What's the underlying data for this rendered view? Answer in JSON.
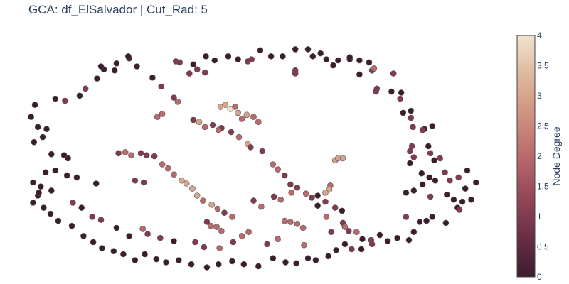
{
  "title": "GCA: df_ElSalvador | Cut_Rad: 5",
  "chart_data": {
    "type": "scatter",
    "title": "GCA: df_ElSalvador | Cut_Rad: 5",
    "xlabel": "",
    "ylabel": "",
    "x_axis_visible": false,
    "y_axis_visible": false,
    "grid": false,
    "colorbar": {
      "title": "Node Degree",
      "range": [
        0,
        4
      ],
      "ticks": [
        0,
        0.5,
        1,
        1.5,
        2,
        2.5,
        3,
        3.5,
        4
      ],
      "tick_labels": [
        "0",
        "0.5",
        "1",
        "1.5",
        "2",
        "2.5",
        "3",
        "3.5",
        "4"
      ],
      "colorscale": [
        "#3b1d2e",
        "#6a2e45",
        "#96485a",
        "#b96a6c",
        "#cf917f",
        "#ddb89c",
        "#efe3ce"
      ]
    },
    "marker_line_color": "#555555",
    "points": [
      [
        -10.0,
        8.9,
        0
      ],
      [
        -7.6,
        10.5,
        1
      ],
      [
        -7.2,
        10.4,
        1
      ],
      [
        -5.8,
        10.2,
        0
      ],
      [
        -4.5,
        11.0,
        0
      ],
      [
        -3.6,
        10.6,
        0
      ],
      [
        -2.2,
        11.0,
        0
      ],
      [
        -1.2,
        10.7,
        0
      ],
      [
        -0.2,
        10.5,
        1
      ],
      [
        0.2,
        10.7,
        1
      ],
      [
        1.1,
        11.6,
        0
      ],
      [
        2.2,
        11.0,
        0
      ],
      [
        3.4,
        11.0,
        0
      ],
      [
        4.7,
        11.7,
        0
      ],
      [
        4.7,
        9.6,
        1
      ],
      [
        4.7,
        9.3,
        1
      ],
      [
        6.0,
        11.7,
        0
      ],
      [
        6.5,
        11.0,
        0
      ],
      [
        7.3,
        11.3,
        0
      ],
      [
        7.9,
        10.7,
        0
      ],
      [
        8.6,
        10.1,
        0
      ],
      [
        9.1,
        10.6,
        0
      ],
      [
        10.3,
        10.7,
        0
      ],
      [
        10.3,
        10.9,
        0
      ],
      [
        11.3,
        10.6,
        0
      ],
      [
        12.3,
        10.4,
        0
      ],
      [
        11.3,
        9.2,
        0
      ],
      [
        12.6,
        9.6,
        1
      ],
      [
        12.8,
        9.8,
        2
      ],
      [
        13.1,
        7.8,
        1
      ],
      [
        13.0,
        7.5,
        1
      ],
      [
        14.8,
        9.3,
        1
      ],
      [
        14.6,
        7.5,
        0
      ],
      [
        15.6,
        7.4,
        0
      ],
      [
        15.5,
        6.8,
        1
      ],
      [
        15.8,
        5.4,
        0
      ],
      [
        16.6,
        5.6,
        0
      ],
      [
        16.6,
        4.9,
        1
      ],
      [
        16.8,
        4.0,
        1
      ],
      [
        18.0,
        3.8,
        0
      ],
      [
        18.8,
        4.1,
        0
      ],
      [
        17.8,
        3.7,
        1
      ],
      [
        18.4,
        2.1,
        0
      ],
      [
        18.6,
        1.4,
        1
      ],
      [
        19.0,
        0.7,
        0
      ],
      [
        16.7,
        2.1,
        1
      ],
      [
        16.5,
        1.6,
        1
      ],
      [
        16.9,
        1.0,
        1
      ],
      [
        16.5,
        0.4,
        0
      ],
      [
        17.7,
        -0.6,
        0
      ],
      [
        18.5,
        -1.0,
        0
      ],
      [
        19.6,
        0.9,
        1
      ],
      [
        20.1,
        -0.5,
        1
      ],
      [
        20.6,
        -1.3,
        1
      ],
      [
        21.5,
        -1.0,
        1
      ],
      [
        22.4,
        -0.3,
        0
      ],
      [
        19.1,
        -1.3,
        0
      ],
      [
        17.8,
        -1.7,
        0
      ],
      [
        16.9,
        -2.3,
        0
      ],
      [
        16.1,
        -2.5,
        0
      ],
      [
        18.6,
        -2.9,
        1
      ],
      [
        20.3,
        -2.7,
        0
      ],
      [
        21.0,
        -3.2,
        0
      ],
      [
        21.9,
        -3.4,
        0
      ],
      [
        22.8,
        -3.2,
        0
      ],
      [
        23.3,
        -1.5,
        0
      ],
      [
        22.2,
        -2.1,
        0
      ],
      [
        21.4,
        -4.0,
        0
      ],
      [
        21.6,
        -4.2,
        1
      ],
      [
        20.2,
        -5.5,
        0
      ],
      [
        18.8,
        -4.9,
        0
      ],
      [
        18.2,
        -5.3,
        0
      ],
      [
        17.5,
        -5.4,
        0
      ],
      [
        16.1,
        -4.9,
        1
      ],
      [
        16.9,
        -6.4,
        0
      ],
      [
        16.4,
        -7.2,
        0
      ],
      [
        15.2,
        -7.0,
        0
      ],
      [
        14.2,
        -7.3,
        0
      ],
      [
        13.4,
        -6.7,
        0
      ],
      [
        12.5,
        -7.2,
        1
      ],
      [
        11.5,
        -8.1,
        0
      ],
      [
        10.5,
        -8.1,
        1
      ],
      [
        9.8,
        -7.6,
        0
      ],
      [
        8.9,
        -8.2,
        0
      ],
      [
        8.1,
        -8.8,
        0
      ],
      [
        6.8,
        -9.2,
        0
      ],
      [
        6.0,
        -9.0,
        0
      ],
      [
        4.8,
        -9.5,
        0
      ],
      [
        3.7,
        -9.4,
        0
      ],
      [
        2.4,
        -9.0,
        0
      ],
      [
        0.9,
        -9.8,
        0
      ],
      [
        -0.6,
        -9.6,
        0
      ],
      [
        -1.8,
        -9.3,
        0
      ],
      [
        -3.2,
        -9.6,
        0
      ],
      [
        -4.4,
        -9.9,
        0
      ],
      [
        -6.0,
        -9.6,
        0
      ],
      [
        -7.3,
        -9.2,
        0
      ],
      [
        -8.6,
        -9.4,
        0
      ],
      [
        -9.6,
        -9.1,
        0
      ],
      [
        -10.8,
        -8.6,
        0
      ],
      [
        -11.8,
        -9.2,
        0
      ],
      [
        -13.0,
        -8.6,
        0
      ],
      [
        -14.0,
        -8.3,
        0
      ],
      [
        -15.2,
        -8.0,
        0
      ],
      [
        -16.1,
        -7.4,
        0
      ],
      [
        -17.1,
        -6.8,
        0
      ],
      [
        -18.3,
        -5.8,
        0
      ],
      [
        -19.7,
        -5.3,
        0
      ],
      [
        -20.5,
        -4.6,
        0
      ],
      [
        -21.2,
        -4.0,
        0
      ],
      [
        -22.3,
        -3.5,
        0
      ],
      [
        -21.8,
        -2.8,
        0
      ],
      [
        -21.7,
        -2.5,
        0
      ],
      [
        -20.4,
        -2.3,
        0
      ],
      [
        -21.5,
        -1.9,
        0
      ],
      [
        -22.3,
        -1.5,
        0
      ],
      [
        -21.0,
        -0.5,
        0
      ],
      [
        -20.0,
        -0.3,
        0
      ],
      [
        -18.8,
        -0.8,
        0
      ],
      [
        -17.8,
        -1.0,
        0
      ],
      [
        -18.7,
        0.9,
        0
      ],
      [
        -19.1,
        1.2,
        0
      ],
      [
        -20.4,
        1.3,
        0
      ],
      [
        -22.2,
        2.5,
        0
      ],
      [
        -21.3,
        3.0,
        0
      ],
      [
        -20.9,
        3.8,
        0
      ],
      [
        -21.8,
        4.0,
        0
      ],
      [
        -22.5,
        5.0,
        0
      ],
      [
        -22.1,
        6.2,
        0
      ],
      [
        -20.0,
        6.8,
        0
      ],
      [
        -19.0,
        6.6,
        1
      ],
      [
        -17.5,
        7.1,
        0
      ],
      [
        -16.9,
        7.8,
        1
      ],
      [
        -15.7,
        8.8,
        0
      ],
      [
        -15.0,
        9.7,
        0
      ],
      [
        -15.3,
        10.0,
        0
      ],
      [
        -13.9,
        9.6,
        0
      ],
      [
        -13.7,
        10.3,
        0
      ],
      [
        -12.4,
        10.8,
        0
      ],
      [
        -11.6,
        10.0,
        0
      ],
      [
        -12.5,
        11.0,
        0
      ],
      [
        -9.1,
        8.0,
        1
      ],
      [
        -7.8,
        6.9,
        1
      ],
      [
        -7.4,
        6.5,
        2
      ],
      [
        -5.8,
        4.7,
        1
      ],
      [
        -5.2,
        4.5,
        3
      ],
      [
        -4.6,
        4.0,
        2
      ],
      [
        -3.8,
        4.2,
        1
      ],
      [
        -2.9,
        3.9,
        1
      ],
      [
        -3.2,
        3.7,
        2
      ],
      [
        -1.9,
        3.5,
        1
      ],
      [
        -1.1,
        3.0,
        2
      ],
      [
        -0.2,
        2.3,
        3
      ],
      [
        0.1,
        2.0,
        1
      ],
      [
        1.3,
        1.6,
        1
      ],
      [
        2.4,
        0.3,
        2
      ],
      [
        2.9,
        -0.2,
        2
      ],
      [
        3.6,
        -0.8,
        1
      ],
      [
        4.2,
        -1.7,
        1
      ],
      [
        4.9,
        -2.0,
        1
      ],
      [
        5.8,
        -2.6,
        2
      ],
      [
        6.4,
        -3.0,
        1
      ],
      [
        7.0,
        -2.8,
        0
      ],
      [
        7.8,
        -3.4,
        1
      ],
      [
        8.8,
        -4.0,
        1
      ],
      [
        9.5,
        -4.3,
        0
      ],
      [
        9.6,
        -5.5,
        1
      ],
      [
        9.8,
        -5.9,
        2
      ],
      [
        10.2,
        -6.3,
        1
      ],
      [
        11.0,
        -6.4,
        2
      ],
      [
        11.6,
        -7.1,
        0
      ],
      [
        12.6,
        -7.6,
        1
      ],
      [
        8.8,
        0.7,
        3
      ],
      [
        9.1,
        0.9,
        3
      ],
      [
        9.6,
        0.9,
        3
      ],
      [
        8.3,
        -1.8,
        2
      ],
      [
        8.2,
        -2.2,
        3
      ],
      [
        7.8,
        -2.5,
        3
      ],
      [
        7.0,
        -3.8,
        0
      ],
      [
        7.9,
        -4.9,
        2
      ],
      [
        8.4,
        -6.4,
        1
      ],
      [
        5.6,
        -7.7,
        2
      ],
      [
        2.9,
        -7.1,
        2
      ],
      [
        1.8,
        -7.6,
        1
      ],
      [
        -0.1,
        -6.4,
        2
      ],
      [
        -0.8,
        -6.8,
        2
      ],
      [
        -1.7,
        -7.4,
        1
      ],
      [
        -3.1,
        -8.0,
        2
      ],
      [
        -4.7,
        -7.9,
        1
      ],
      [
        -5.6,
        -7.4,
        1
      ],
      [
        -7.8,
        -7.3,
        0
      ],
      [
        -9.2,
        -7.0,
        1
      ],
      [
        -10.5,
        -6.6,
        1
      ],
      [
        -11.0,
        -6.1,
        2
      ],
      [
        -12.4,
        -6.8,
        0
      ],
      [
        -13.7,
        -6.0,
        0
      ],
      [
        -15.3,
        -5.2,
        1
      ],
      [
        -16.2,
        -4.9,
        1
      ],
      [
        -17.3,
        -4.0,
        0
      ],
      [
        -18.2,
        -3.5,
        1
      ],
      [
        -15.8,
        -1.6,
        0
      ],
      [
        -11.8,
        -1.3,
        1
      ],
      [
        -10.9,
        -1.5,
        1
      ],
      [
        -13.5,
        1.4,
        1
      ],
      [
        -12.8,
        1.5,
        2
      ],
      [
        -12.2,
        1.2,
        2
      ],
      [
        -11.2,
        1.4,
        1
      ],
      [
        -10.6,
        1.2,
        1
      ],
      [
        -9.8,
        1.1,
        1
      ],
      [
        -9.0,
        0.3,
        2
      ],
      [
        -8.4,
        -0.1,
        2
      ],
      [
        -7.8,
        -0.7,
        2
      ],
      [
        -7.0,
        -1.3,
        3
      ],
      [
        -6.5,
        -1.6,
        3
      ],
      [
        -5.9,
        -2.1,
        3
      ],
      [
        -5.4,
        -2.8,
        3
      ],
      [
        -4.8,
        -3.3,
        2
      ],
      [
        -3.9,
        -3.7,
        3
      ],
      [
        -3.3,
        -4.1,
        2
      ],
      [
        -2.6,
        -4.5,
        1
      ],
      [
        -1.8,
        -4.9,
        2
      ],
      [
        0.4,
        -3.3,
        1
      ],
      [
        1.2,
        -3.9,
        2
      ],
      [
        2.5,
        -2.9,
        1
      ],
      [
        3.2,
        -3.2,
        2
      ],
      [
        4.3,
        -2.5,
        2
      ],
      [
        -3.0,
        6.0,
        3
      ],
      [
        -2.5,
        6.2,
        3
      ],
      [
        -2.0,
        5.8,
        4
      ],
      [
        -1.5,
        6.0,
        2
      ],
      [
        -1.2,
        5.4,
        3
      ],
      [
        -0.8,
        4.8,
        2
      ],
      [
        -0.3,
        5.2,
        3
      ],
      [
        0.4,
        5.0,
        2
      ],
      [
        0.9,
        4.5,
        2
      ],
      [
        -6.2,
        9.3,
        1
      ],
      [
        -5.4,
        9.7,
        1
      ],
      [
        -4.6,
        9.4,
        1
      ],
      [
        3.6,
        -5.3,
        2
      ],
      [
        4.2,
        -5.4,
        2
      ],
      [
        4.9,
        -5.6,
        2
      ],
      [
        5.5,
        -6.0,
        2
      ],
      [
        -4.4,
        -5.4,
        1
      ],
      [
        -4.0,
        -5.8,
        2
      ],
      [
        -3.4,
        -5.9,
        2
      ],
      [
        -2.9,
        -6.3,
        2
      ],
      [
        -9.5,
        5.0,
        2
      ],
      [
        -9.0,
        5.3,
        2
      ]
    ]
  }
}
